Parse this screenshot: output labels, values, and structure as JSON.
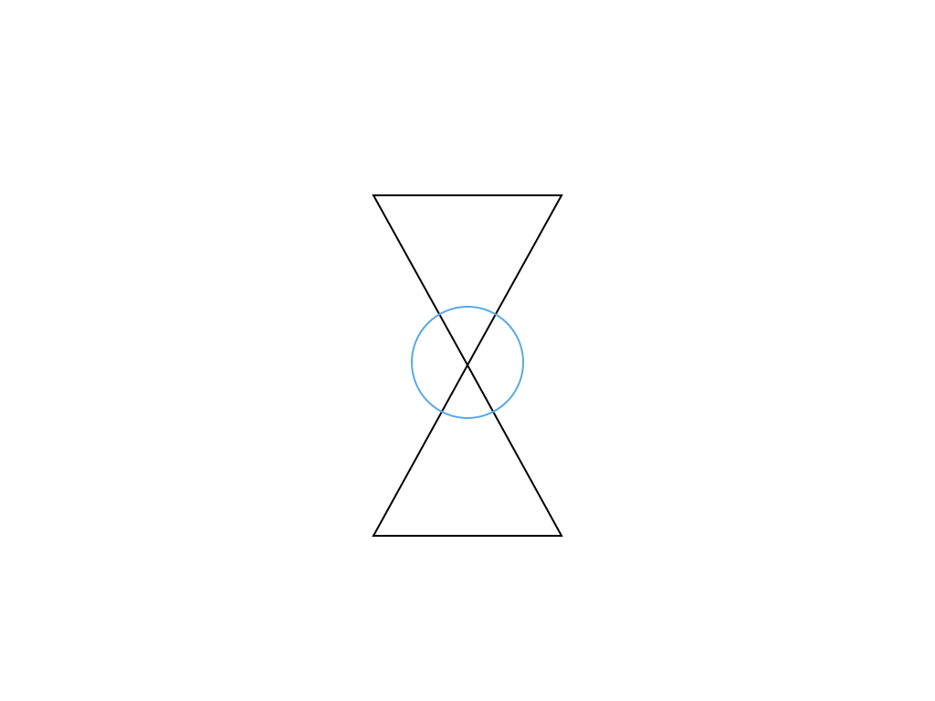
{
  "diagram": {
    "shapes": [
      {
        "kind": "triangle",
        "role": "upper",
        "stroke": "#000000",
        "fill": "none"
      },
      {
        "kind": "triangle",
        "role": "lower",
        "stroke": "#000000",
        "fill": "none"
      },
      {
        "kind": "circle",
        "role": "center",
        "stroke": "#5AA9E6",
        "fill": "none"
      }
    ]
  }
}
